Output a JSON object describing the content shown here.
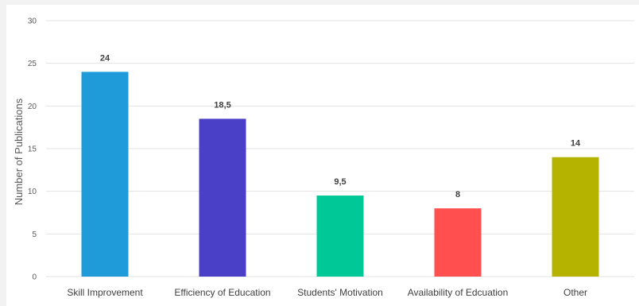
{
  "chart_data": {
    "type": "bar",
    "title": "",
    "xlabel": "",
    "ylabel": "Number of Publications",
    "ylim": [
      0,
      30
    ],
    "yticks": [
      0,
      5,
      10,
      15,
      20,
      25,
      30
    ],
    "grid": true,
    "categories": [
      "Skill Improvement",
      "Efficiency of Education",
      "Students' Motivation",
      "Availability of Edcuation",
      "Other"
    ],
    "values": [
      24,
      18.5,
      9.5,
      8,
      14
    ],
    "data_labels": [
      "24",
      "18,5",
      "9,5",
      "8",
      "14"
    ],
    "colors": [
      "#1f9bd9",
      "#4a40c8",
      "#00c896",
      "#ff4f4f",
      "#b5b300"
    ]
  }
}
